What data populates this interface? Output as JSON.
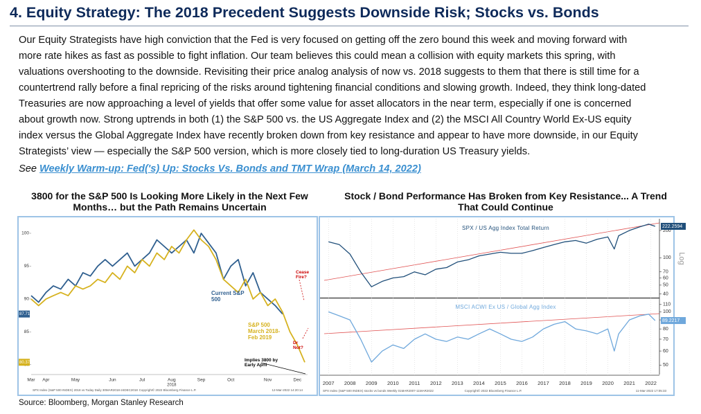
{
  "header": {
    "title": "4. Equity Strategy: The 2018 Precedent Suggests Downside Risk; Stocks vs. Bonds"
  },
  "body": {
    "lines": [
      "Our Equity Strategists have high conviction that the Fed is very focused on getting off the zero bound this week and moving forward with",
      "more rate hikes as fast as possible to fight inflation. Our team believes this could mean a collision with equity markets this spring, with",
      "valuations overshooting to the downside. Revisiting their price analog analysis of now vs. 2018 suggests to them that there is still time for a",
      "countertrend rally before a final repricing of the risks around tightening financial conditions and slowing growth. Indeed, they think long-dated",
      "Treasuries are now approaching a level of yields that offer some value for asset allocators in the near term, especially if one is concerned",
      "about growth now. Strong uptrends in both (1) the S&P 500 vs. the US Aggregate Index and (2) the MSCI All Country World Ex-US equity",
      "index versus the Global Aggregate Index have recently broken down from key resistance and appear to have more downside, in our Equity",
      "Strategists’ view — especially the S&P 500 version, which is more closely tied to long-duration US Treasury yields."
    ],
    "see": "See",
    "link": "Weekly Warm-up: Fed('s) Up: Stocks Vs. Bonds and TMT Wrap (March 14, 2022)"
  },
  "source": "Source: Bloomberg, Morgan Stanley Research",
  "chart_data": [
    {
      "type": "line",
      "title": "3800 for the S&P 500 Is Looking More Likely in the Next Few Months… but the Path Remains Uncertain",
      "categories": [
        "Mar",
        null,
        "Apr",
        null,
        null,
        null,
        "May",
        null,
        null,
        null,
        null,
        "Jun",
        null,
        null,
        null,
        "Jul",
        null,
        null,
        null,
        "Aug",
        null,
        null,
        null,
        "Sep",
        null,
        null,
        null,
        "Oct",
        null,
        null,
        null,
        null,
        "Nov",
        null,
        null,
        null,
        "Dec",
        null
      ],
      "x_year_label": "2018",
      "ylim": [
        78.5,
        102
      ],
      "yticks": [
        80,
        85,
        90,
        95,
        100
      ],
      "grid": false,
      "series": [
        {
          "name": "Current S&P 500",
          "color": "#2f5f8f",
          "values": [
            90.5,
            89.5,
            91,
            92,
            91.5,
            93,
            92,
            94,
            93.5,
            95,
            96,
            95,
            96,
            97,
            95,
            96,
            97,
            99,
            98,
            97,
            98,
            99,
            97,
            100,
            98.5,
            97,
            93,
            95,
            96,
            92,
            94,
            91,
            90,
            89,
            87.71,
            null,
            null,
            null
          ]
        },
        {
          "name": "S&P 500 March 2018-Feb 2019",
          "color": "#d6b21f",
          "values": [
            90,
            89,
            90,
            90.5,
            91,
            90.5,
            92,
            91.5,
            92,
            93,
            92.5,
            94,
            93,
            95,
            94,
            96,
            95,
            97,
            96,
            98,
            97,
            99,
            100.5,
            99,
            98,
            96,
            93,
            92,
            91,
            93,
            90,
            91,
            89,
            90,
            88,
            85,
            83,
            80.37
          ]
        }
      ],
      "annotations": [
        "Cease Fire?",
        "Dr Not?",
        "Implies 3800 by Early April"
      ],
      "footnotes": [
        "SPX Index (S&P 500 INDEX) 2018 vs Today  Daily 30MAR2018-24DEC2018",
        "Copyright© 2022 Bloomberg Finance L.P.",
        "12-Mar-2022 14:20:14"
      ]
    },
    {
      "type": "line",
      "title": "Stock / Bond Performance Has Broken from Key Resistance... A Trend That Could Continue",
      "x": [
        2007,
        2007.5,
        2008,
        2008.5,
        2009,
        2009.5,
        2010,
        2010.5,
        2011,
        2011.5,
        2012,
        2012.5,
        2013,
        2013.5,
        2014,
        2014.5,
        2015,
        2015.5,
        2016,
        2016.5,
        2017,
        2017.5,
        2018,
        2018.5,
        2019,
        2019.5,
        2020,
        2020.3,
        2020.5,
        2021,
        2021.5,
        2021.9,
        2022.2
      ],
      "xlim": [
        2006.8,
        2022.4
      ],
      "xticks": [
        2007,
        2008,
        2009,
        2010,
        2011,
        2012,
        2013,
        2014,
        2015,
        2016,
        2017,
        2018,
        2019,
        2020,
        2021,
        2022
      ],
      "grid": true,
      "series": [
        {
          "name": "SPX / US Agg Index Total Return",
          "color": "#1f4e79",
          "log": true,
          "scale_label": "Log",
          "ylim": [
            37,
            260
          ],
          "yticks": [
            40,
            50,
            60,
            70,
            100,
            200
          ],
          "values": [
            150,
            140,
            110,
            70,
            48,
            55,
            60,
            62,
            70,
            65,
            75,
            78,
            90,
            95,
            105,
            110,
            115,
            112,
            112,
            120,
            130,
            140,
            150,
            155,
            145,
            160,
            170,
            125,
            175,
            200,
            220,
            235,
            222.2594
          ]
        },
        {
          "name": "MSCI ACWI Ex US / Global Agg Index",
          "color": "#6fa8dc",
          "log": true,
          "ylim": [
            45,
            118
          ],
          "yticks": [
            50,
            60,
            70,
            80,
            90,
            100,
            110
          ],
          "values": [
            100,
            95,
            90,
            70,
            52,
            60,
            65,
            62,
            70,
            75,
            70,
            68,
            72,
            70,
            75,
            80,
            75,
            70,
            68,
            72,
            80,
            85,
            88,
            80,
            78,
            75,
            80,
            60,
            75,
            90,
            95,
            97,
            89.2217
          ]
        }
      ],
      "footnotes": [
        "SPX Index (S&P 500 INDEX) stocks vs bonds  Weekly 01MAR2007-11MAR2022",
        "Copyright© 2022 Bloomberg Finance L.P.",
        "11-Mar-2022 17:05:33"
      ]
    }
  ]
}
